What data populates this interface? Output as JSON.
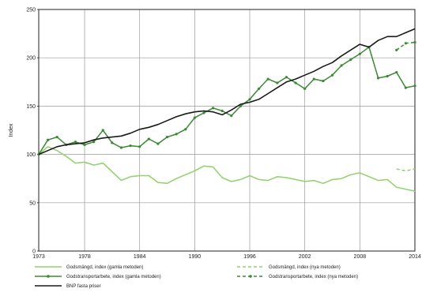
{
  "chart_data": {
    "type": "line",
    "title": "",
    "ylabel": "Index",
    "xlabel": "",
    "xlim": [
      1973,
      2014
    ],
    "ylim": [
      0,
      250
    ],
    "x_ticks": [
      1973,
      1978,
      1984,
      1990,
      1996,
      2002,
      2008,
      2014
    ],
    "y_ticks": [
      0,
      50,
      100,
      150,
      200,
      250
    ],
    "grid": true,
    "legend_placement": "bottom",
    "colors": {
      "light_green": "#8fd16a",
      "dark_green": "#3a8a32",
      "black": "#1a1a1a"
    },
    "series": [
      {
        "name": "Godsmängd, index (gamla metoden)",
        "color_key": "light_green",
        "style": "solid",
        "x": [
          1973,
          1974,
          1975,
          1976,
          1977,
          1978,
          1979,
          1980,
          1981,
          1982,
          1983,
          1984,
          1985,
          1986,
          1987,
          1988,
          1989,
          1990,
          1991,
          1992,
          1993,
          1994,
          1995,
          1996,
          1997,
          1998,
          1999,
          2000,
          2001,
          2002,
          2003,
          2004,
          2005,
          2006,
          2007,
          2008,
          2009,
          2010,
          2011,
          2012,
          2013,
          2014
        ],
        "values": [
          100,
          108,
          104,
          98,
          91,
          92,
          89,
          91,
          82,
          73,
          77,
          78,
          78,
          71,
          70,
          75,
          79,
          83,
          88,
          87,
          76,
          72,
          74,
          78,
          74,
          73,
          77,
          76,
          74,
          72,
          73,
          70,
          74,
          75,
          79,
          81,
          77,
          73,
          74,
          66,
          64,
          62
        ]
      },
      {
        "name": "Godstransportarbete, index (gamla metoden)",
        "color_key": "dark_green",
        "style": "solid-markers",
        "x": [
          1973,
          1974,
          1975,
          1976,
          1977,
          1978,
          1979,
          1980,
          1981,
          1982,
          1983,
          1984,
          1985,
          1986,
          1987,
          1988,
          1989,
          1990,
          1991,
          1992,
          1993,
          1994,
          1995,
          1996,
          1997,
          1998,
          1999,
          2000,
          2001,
          2002,
          2003,
          2004,
          2005,
          2006,
          2007,
          2008,
          2009,
          2010,
          2011,
          2012,
          2013,
          2014
        ],
        "values": [
          100,
          115,
          118,
          110,
          113,
          110,
          113,
          125,
          112,
          107,
          109,
          108,
          116,
          111,
          118,
          121,
          126,
          138,
          143,
          148,
          145,
          140,
          150,
          157,
          168,
          178,
          174,
          180,
          174,
          168,
          178,
          176,
          182,
          192,
          198,
          204,
          211,
          179,
          181,
          185,
          169,
          171
        ]
      },
      {
        "name": "BNP fasta priser",
        "color_key": "black",
        "style": "solid",
        "x": [
          1973,
          1974,
          1975,
          1976,
          1977,
          1978,
          1979,
          1980,
          1981,
          1982,
          1983,
          1984,
          1985,
          1986,
          1987,
          1988,
          1989,
          1990,
          1991,
          1992,
          1993,
          1994,
          1995,
          1996,
          1997,
          1998,
          1999,
          2000,
          2001,
          2002,
          2003,
          2004,
          2005,
          2006,
          2007,
          2008,
          2009,
          2010,
          2011,
          2012,
          2013,
          2014
        ],
        "values": [
          100,
          104,
          108,
          110,
          111,
          112,
          115,
          117,
          118,
          119,
          122,
          126,
          128,
          131,
          135,
          139,
          142,
          144,
          145,
          144,
          141,
          146,
          152,
          154,
          157,
          163,
          169,
          175,
          178,
          182,
          186,
          191,
          195,
          202,
          208,
          214,
          211,
          218,
          222,
          222,
          226,
          230
        ]
      },
      {
        "name": "Godsmängd, index (nya metoden)",
        "color_key": "light_green",
        "style": "dashed",
        "x": [
          2012,
          2013,
          2014
        ],
        "values": [
          85,
          83,
          85
        ]
      },
      {
        "name": "Godstransportarbete, index (nya metoden)",
        "color_key": "dark_green",
        "style": "dashed-markers",
        "x": [
          2012,
          2013,
          2014
        ],
        "values": [
          208,
          215,
          216
        ]
      }
    ],
    "legend_layout": [
      {
        "series": 0,
        "col": 0,
        "row": 0
      },
      {
        "series": 3,
        "col": 1,
        "row": 0
      },
      {
        "series": 1,
        "col": 0,
        "row": 1
      },
      {
        "series": 4,
        "col": 1,
        "row": 1
      },
      {
        "series": 2,
        "col": 0,
        "row": 2
      }
    ]
  }
}
